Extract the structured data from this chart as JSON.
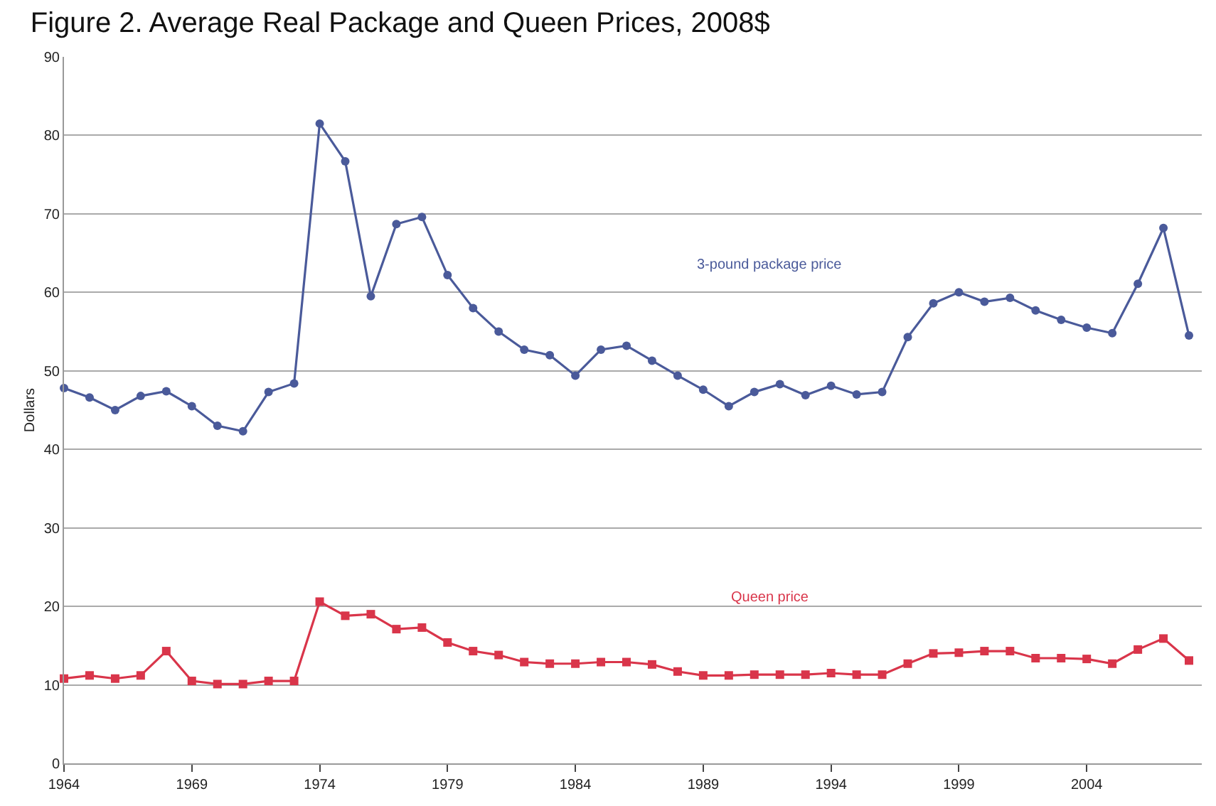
{
  "chart_data": {
    "type": "line",
    "title": "Figure 2. Average Real Package and Queen Prices, 2008$",
    "ylabel": "Dollars",
    "x": [
      1964,
      1965,
      1966,
      1967,
      1968,
      1969,
      1970,
      1971,
      1972,
      1973,
      1974,
      1975,
      1976,
      1977,
      1978,
      1979,
      1980,
      1981,
      1982,
      1983,
      1984,
      1985,
      1986,
      1987,
      1988,
      1989,
      1990,
      1991,
      1992,
      1993,
      1994,
      1995,
      1996,
      1997,
      1998,
      1999,
      2000,
      2001,
      2002,
      2003,
      2004,
      2005,
      2006,
      2007,
      2008
    ],
    "series": [
      {
        "name": "3-pound package price",
        "color": "#4a5a9a",
        "marker": "circle",
        "values": [
          47.8,
          46.6,
          45.0,
          46.8,
          47.4,
          45.5,
          43.0,
          42.3,
          47.3,
          48.4,
          81.5,
          76.7,
          59.5,
          68.7,
          69.6,
          62.2,
          58.0,
          55.0,
          52.7,
          52.0,
          49.4,
          52.7,
          53.2,
          51.3,
          49.4,
          47.6,
          45.5,
          47.3,
          48.3,
          46.9,
          48.1,
          47.0,
          47.3,
          54.3,
          58.6,
          60.0,
          58.8,
          59.3,
          57.7,
          56.5,
          55.5,
          54.8,
          61.1,
          68.2,
          54.5
        ]
      },
      {
        "name": "Queen price",
        "color": "#d9354a",
        "marker": "square",
        "values": [
          10.8,
          11.2,
          10.8,
          11.2,
          14.3,
          10.5,
          10.1,
          10.1,
          10.5,
          10.5,
          20.6,
          18.8,
          19.0,
          17.1,
          17.3,
          15.4,
          14.3,
          13.8,
          12.9,
          12.7,
          12.7,
          12.9,
          12.9,
          12.6,
          11.7,
          11.2,
          11.2,
          11.3,
          11.3,
          11.3,
          11.5,
          11.3,
          11.3,
          12.7,
          14.0,
          14.1,
          14.3,
          14.3,
          13.4,
          13.4,
          13.3,
          12.7,
          14.5,
          15.9,
          13.1
        ]
      }
    ],
    "xlim": [
      1964,
      2008.5
    ],
    "xticks": [
      1964,
      1969,
      1974,
      1979,
      1984,
      1989,
      1994,
      1999,
      2004
    ],
    "ylim": [
      0,
      90
    ],
    "yticks": [
      0,
      10,
      20,
      30,
      40,
      50,
      60,
      70,
      80,
      90
    ],
    "grid": "y",
    "legend": false,
    "line_style": "solid"
  }
}
